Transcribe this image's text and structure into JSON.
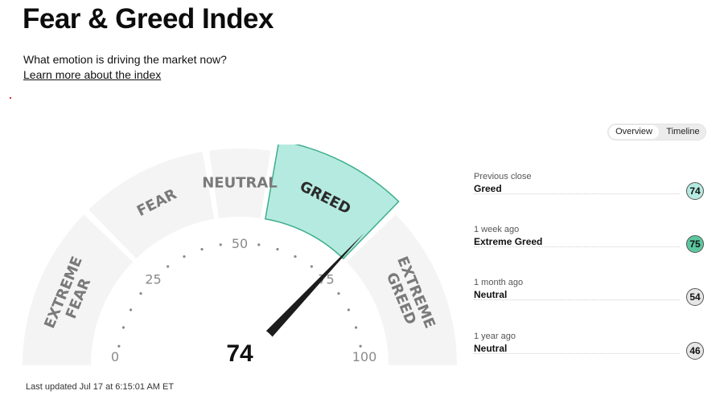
{
  "header": {
    "title": "Fear & Greed Index",
    "subtitle": "What emotion is driving the market now?",
    "learn_more": "Learn more about the index"
  },
  "toggle": {
    "options": [
      "Overview",
      "Timeline"
    ],
    "selected": "Overview"
  },
  "gauge": {
    "value": 74,
    "zones": [
      "EXTREME FEAR",
      "FEAR",
      "NEUTRAL",
      "GREED",
      "EXTREME GREED"
    ],
    "active_zone": "GREED",
    "scale_labels": [
      "0",
      "25",
      "50",
      "75",
      "100"
    ],
    "colors": {
      "zone": "#f4f4f4",
      "active_zone": "#b5eae0",
      "active_border": "#3fae8c",
      "needle": "#1c1c1c"
    }
  },
  "last_updated": "Last updated Jul 17 at 6:15:01 AM ET",
  "history": [
    {
      "label": "Previous close",
      "value": "Greed",
      "score": "74",
      "color": "#b5eae0"
    },
    {
      "label": "1 week ago",
      "value": "Extreme Greed",
      "score": "75",
      "color": "#5cc79f"
    },
    {
      "label": "1 month ago",
      "value": "Neutral",
      "score": "54",
      "color": "#e6e6e6"
    },
    {
      "label": "1 year ago",
      "value": "Neutral",
      "score": "46",
      "color": "#e6e6e6"
    }
  ]
}
